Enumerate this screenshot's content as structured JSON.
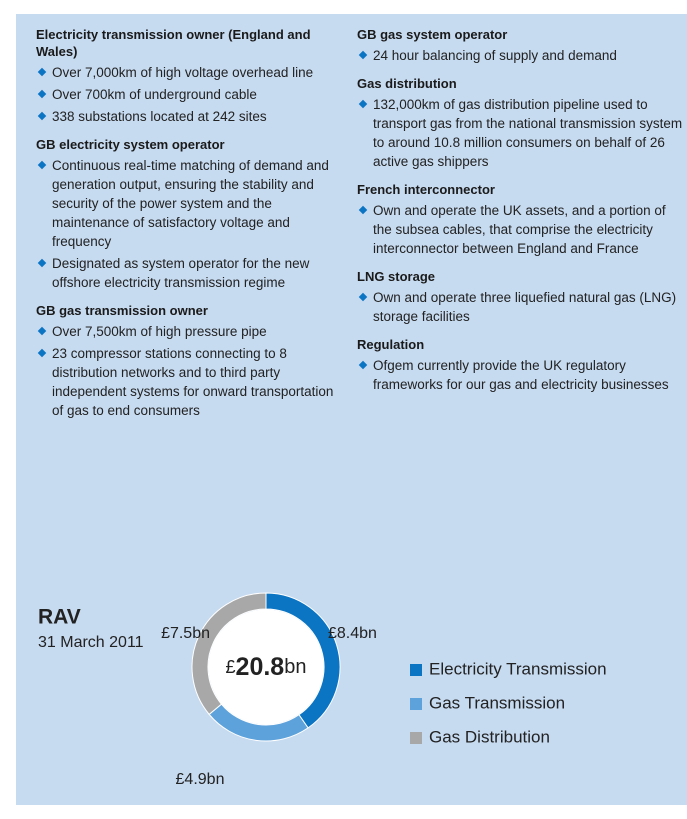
{
  "left": [
    {
      "heading": "Electricity transmission owner (England and Wales)",
      "bullets": [
        "Over 7,000km of high voltage overhead line",
        "Over 700km of underground cable",
        "338 substations located at 242 sites"
      ]
    },
    {
      "heading": "GB electricity system operator",
      "bullets": [
        "Continuous real-time matching of demand and generation output, ensuring the stability and security of the power system and the maintenance of satisfactory voltage and frequency",
        "Designated as system operator for the new offshore electricity transmission regime"
      ]
    },
    {
      "heading": "GB gas transmission owner",
      "bullets": [
        "Over 7,500km of high pressure pipe",
        "23 compressor stations connecting to 8 distribution networks and to third party independent systems for onward transportation of gas to end consumers"
      ]
    }
  ],
  "right": [
    {
      "heading": "GB gas system operator",
      "bullets": [
        "24 hour balancing of supply and demand"
      ]
    },
    {
      "heading": "Gas distribution",
      "bullets": [
        "132,000km of gas distribution pipeline used to transport gas from the national transmission system to around 10.8 million consumers on behalf of 26 active gas shippers"
      ]
    },
    {
      "heading": "French interconnector",
      "bullets": [
        "Own and operate the UK assets, and a portion of the subsea cables, that comprise the electricity interconnector between England and France"
      ]
    },
    {
      "heading": "LNG storage",
      "bullets": [
        "Own and operate three liquefied natural gas (LNG) storage facilities"
      ]
    },
    {
      "heading": "Regulation",
      "bullets": [
        "Ofgem currently provide the UK regulatory frameworks for our gas and electricity businesses"
      ]
    }
  ],
  "chart_data": {
    "type": "donut",
    "title": "RAV",
    "subtitle": "31 March 2011",
    "categories": [
      "Electricity Transmission",
      "Gas Transmission",
      "Gas Distribution"
    ],
    "values": [
      8.4,
      4.9,
      7.5
    ],
    "value_labels": [
      "£8.4bn",
      "£4.9bn",
      "£7.5bn"
    ],
    "colors": [
      "#0b74c3",
      "#5ea2db",
      "#a8a8a8"
    ],
    "center_label": [
      "£",
      "20.8",
      "bn"
    ]
  }
}
